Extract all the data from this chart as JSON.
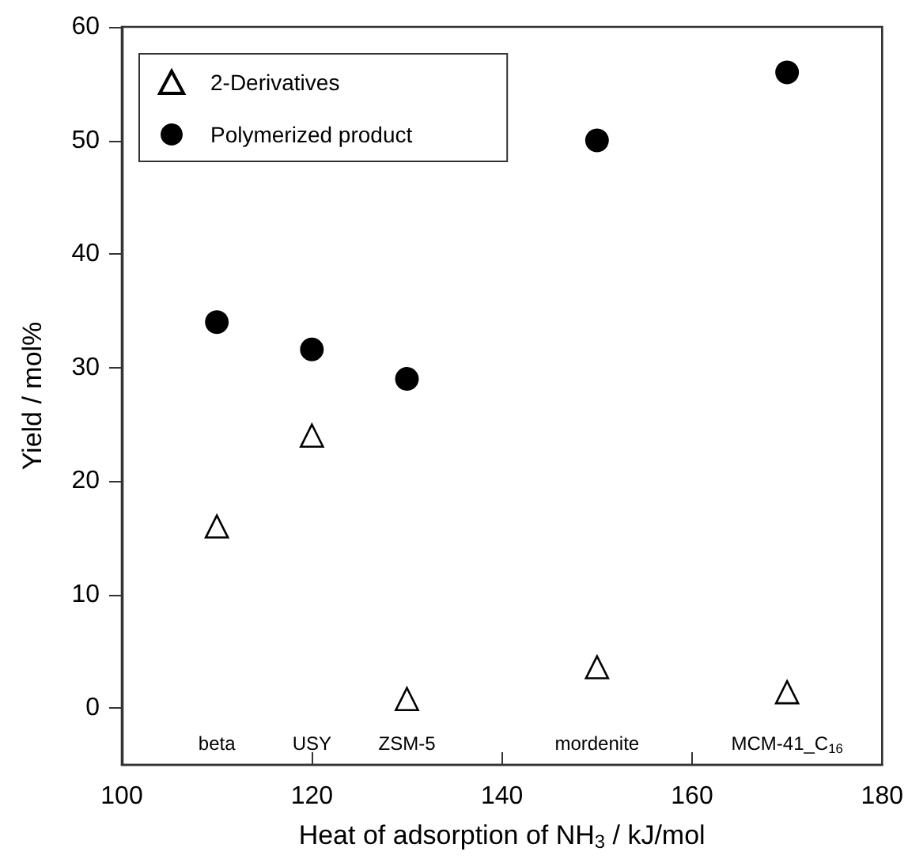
{
  "chart_data": {
    "type": "scatter",
    "xlabel": "Heat of adsorption of NH$_{3}$ / kJ/mol",
    "ylabel": "Yield / mol%",
    "xlim": [
      100,
      180
    ],
    "xticks": [
      100,
      120,
      140,
      160,
      180
    ],
    "ylim": [
      -5,
      60
    ],
    "yticks": [
      0,
      10,
      20,
      30,
      40,
      50,
      60
    ],
    "legend": "top left",
    "series": [
      {
        "name": "2-Derivatives",
        "color": "#000000",
        "marker": "triangle",
        "x": [
          110,
          120,
          130,
          150,
          170
        ],
        "values": [
          16,
          24,
          0.8,
          3.6,
          1.4
        ]
      },
      {
        "name": "Polymerized product",
        "color": "#000000",
        "marker": "circle",
        "x": [
          110,
          120,
          130,
          150,
          170
        ],
        "values": [
          34,
          31.6,
          29,
          50,
          56
        ]
      }
    ],
    "annotations": [
      "beta",
      "USY",
      "ZSM-5",
      "mordenite",
      "MCM-41_C$_{16}$"
    ]
  }
}
